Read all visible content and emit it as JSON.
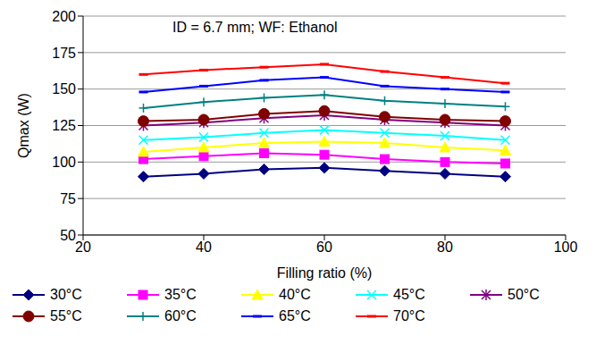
{
  "chart_data": {
    "type": "line",
    "annotation": "ID = 6.7 mm; WF: Ethanol",
    "x_label": "Filling ratio (%)",
    "y_label": "Qmax (W)",
    "x": [
      30,
      40,
      50,
      60,
      70,
      80,
      90
    ],
    "xlim": [
      20,
      100
    ],
    "xticks": [
      20,
      40,
      60,
      80,
      100
    ],
    "ylim": [
      50,
      200
    ],
    "yticks": [
      50,
      75,
      100,
      125,
      150,
      175,
      200
    ],
    "grid": true,
    "legend": "bottom",
    "series": [
      {
        "name": "30°C",
        "color": "#000080",
        "marker": "diamond",
        "values": [
          90,
          92,
          95,
          96,
          94,
          92,
          90
        ]
      },
      {
        "name": "35°C",
        "color": "#FF00FF",
        "marker": "square",
        "values": [
          102,
          104,
          106,
          105,
          102,
          100,
          99
        ]
      },
      {
        "name": "40°C",
        "color": "#FFFF00",
        "marker": "triangle",
        "values": [
          107,
          110,
          113,
          114,
          113,
          110,
          108
        ]
      },
      {
        "name": "45°C",
        "color": "#00FFFF",
        "marker": "x",
        "values": [
          115,
          117,
          120,
          122,
          120,
          118,
          115
        ]
      },
      {
        "name": "50°C",
        "color": "#800080",
        "marker": "star",
        "values": [
          125,
          127,
          130,
          132,
          129,
          127,
          125
        ]
      },
      {
        "name": "55°C",
        "color": "#800000",
        "marker": "circle",
        "values": [
          128,
          129,
          133,
          135,
          131,
          129,
          128
        ]
      },
      {
        "name": "60°C",
        "color": "#008080",
        "marker": "plus",
        "values": [
          137,
          141,
          144,
          146,
          142,
          140,
          138
        ]
      },
      {
        "name": "65°C",
        "color": "#0000FF",
        "marker": "dash",
        "values": [
          148,
          152,
          156,
          158,
          152,
          150,
          148
        ]
      },
      {
        "name": "70°C",
        "color": "#FF0000",
        "marker": "dash",
        "values": [
          160,
          163,
          165,
          167,
          162,
          158,
          154
        ]
      }
    ]
  }
}
